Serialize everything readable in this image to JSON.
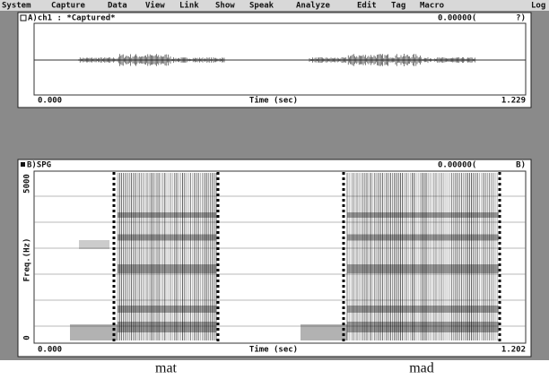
{
  "menu": [
    "System",
    "Capture",
    "Data",
    "View",
    "Link",
    "Show",
    "Speak",
    "Analyze",
    "Edit",
    "Tag",
    "Macro",
    "Log"
  ],
  "waveform_window": {
    "title": "A)ch1 : *Captured*",
    "cursor": "0.00000(",
    "cursor_end": "?)",
    "x_start": "0.000",
    "x_label": "Time (sec)",
    "x_end": "1.229"
  },
  "spectrogram_window": {
    "title": "B)SPG",
    "cursor": "0.00000(",
    "cursor_end": "B)",
    "y_label": "Freq.(Hz)",
    "y_top": "5000",
    "y_bottom": "0",
    "x_start": "0.000",
    "x_label": "Time (sec)",
    "x_end": "1.202"
  },
  "captions": [
    "mat",
    "mad"
  ]
}
